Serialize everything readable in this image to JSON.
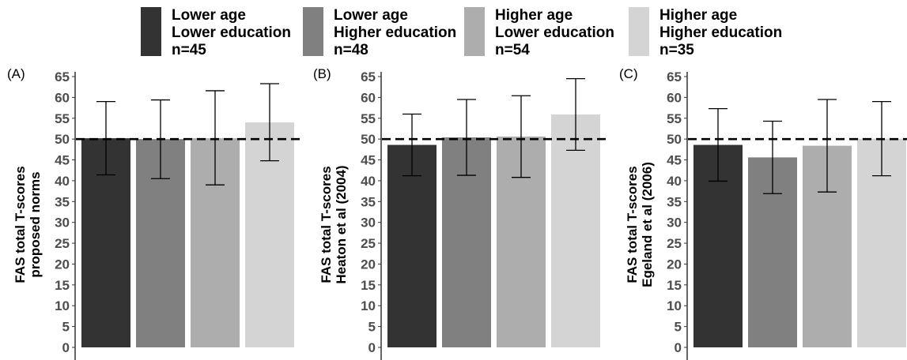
{
  "legend": [
    {
      "lines": [
        "Lower age",
        "Lower education",
        "n=45"
      ],
      "color": "#333333"
    },
    {
      "lines": [
        "Lower age",
        "Higher education",
        "n=48"
      ],
      "color": "#808080"
    },
    {
      "lines": [
        "Higher age",
        "Lower education",
        "n=54"
      ],
      "color": "#adadad"
    },
    {
      "lines": [
        "Higher age",
        "Higher education",
        "n=35"
      ],
      "color": "#d4d4d4"
    }
  ],
  "chart_data": [
    {
      "type": "bar",
      "panel_label": "(A)",
      "ylabel": [
        "FAS total T-scores",
        "proposed norms"
      ],
      "categories": [
        "Lower age, Lower education, n=45",
        "Lower age, Higher education, n=48",
        "Higher age, Lower education, n=54",
        "Higher age, Higher education, n=35"
      ],
      "values": [
        50.2,
        50.0,
        50.2,
        54.0
      ],
      "error_low": [
        41.4,
        40.5,
        39.0,
        44.8
      ],
      "error_high": [
        59.0,
        59.4,
        61.6,
        63.3
      ],
      "reference_line": 50,
      "ylim": [
        0,
        65
      ],
      "yticks": [
        0,
        5,
        10,
        15,
        20,
        25,
        30,
        35,
        40,
        45,
        50,
        55,
        60,
        65
      ]
    },
    {
      "type": "bar",
      "panel_label": "(B)",
      "ylabel": [
        "FAS total T-scores",
        "Heaton et al (2004)"
      ],
      "categories": [
        "Lower age, Lower education, n=45",
        "Lower age, Higher education, n=48",
        "Higher age, Lower education, n=54",
        "Higher age, Higher education, n=35"
      ],
      "values": [
        48.6,
        50.4,
        50.6,
        55.9
      ],
      "error_low": [
        41.2,
        41.3,
        40.8,
        47.3
      ],
      "error_high": [
        56.0,
        59.5,
        60.4,
        64.5
      ],
      "reference_line": 50,
      "ylim": [
        0,
        65
      ],
      "yticks": [
        0,
        5,
        10,
        15,
        20,
        25,
        30,
        35,
        40,
        45,
        50,
        55,
        60,
        65
      ]
    },
    {
      "type": "bar",
      "panel_label": "(C)",
      "ylabel": [
        "FAS total T-scores",
        "Egeland et al (2006)"
      ],
      "categories": [
        "Lower age, Lower education, n=45",
        "Lower age, Higher education, n=48",
        "Higher age, Lower education, n=54",
        "Higher age, Higher education, n=35"
      ],
      "values": [
        48.6,
        45.6,
        48.4,
        50.1
      ],
      "error_low": [
        39.9,
        36.9,
        37.3,
        41.2
      ],
      "error_high": [
        57.3,
        54.3,
        59.5,
        59.0
      ],
      "reference_line": 50,
      "ylim": [
        0,
        65
      ],
      "yticks": [
        0,
        5,
        10,
        15,
        20,
        25,
        30,
        35,
        40,
        45,
        50,
        55,
        60,
        65
      ]
    }
  ]
}
